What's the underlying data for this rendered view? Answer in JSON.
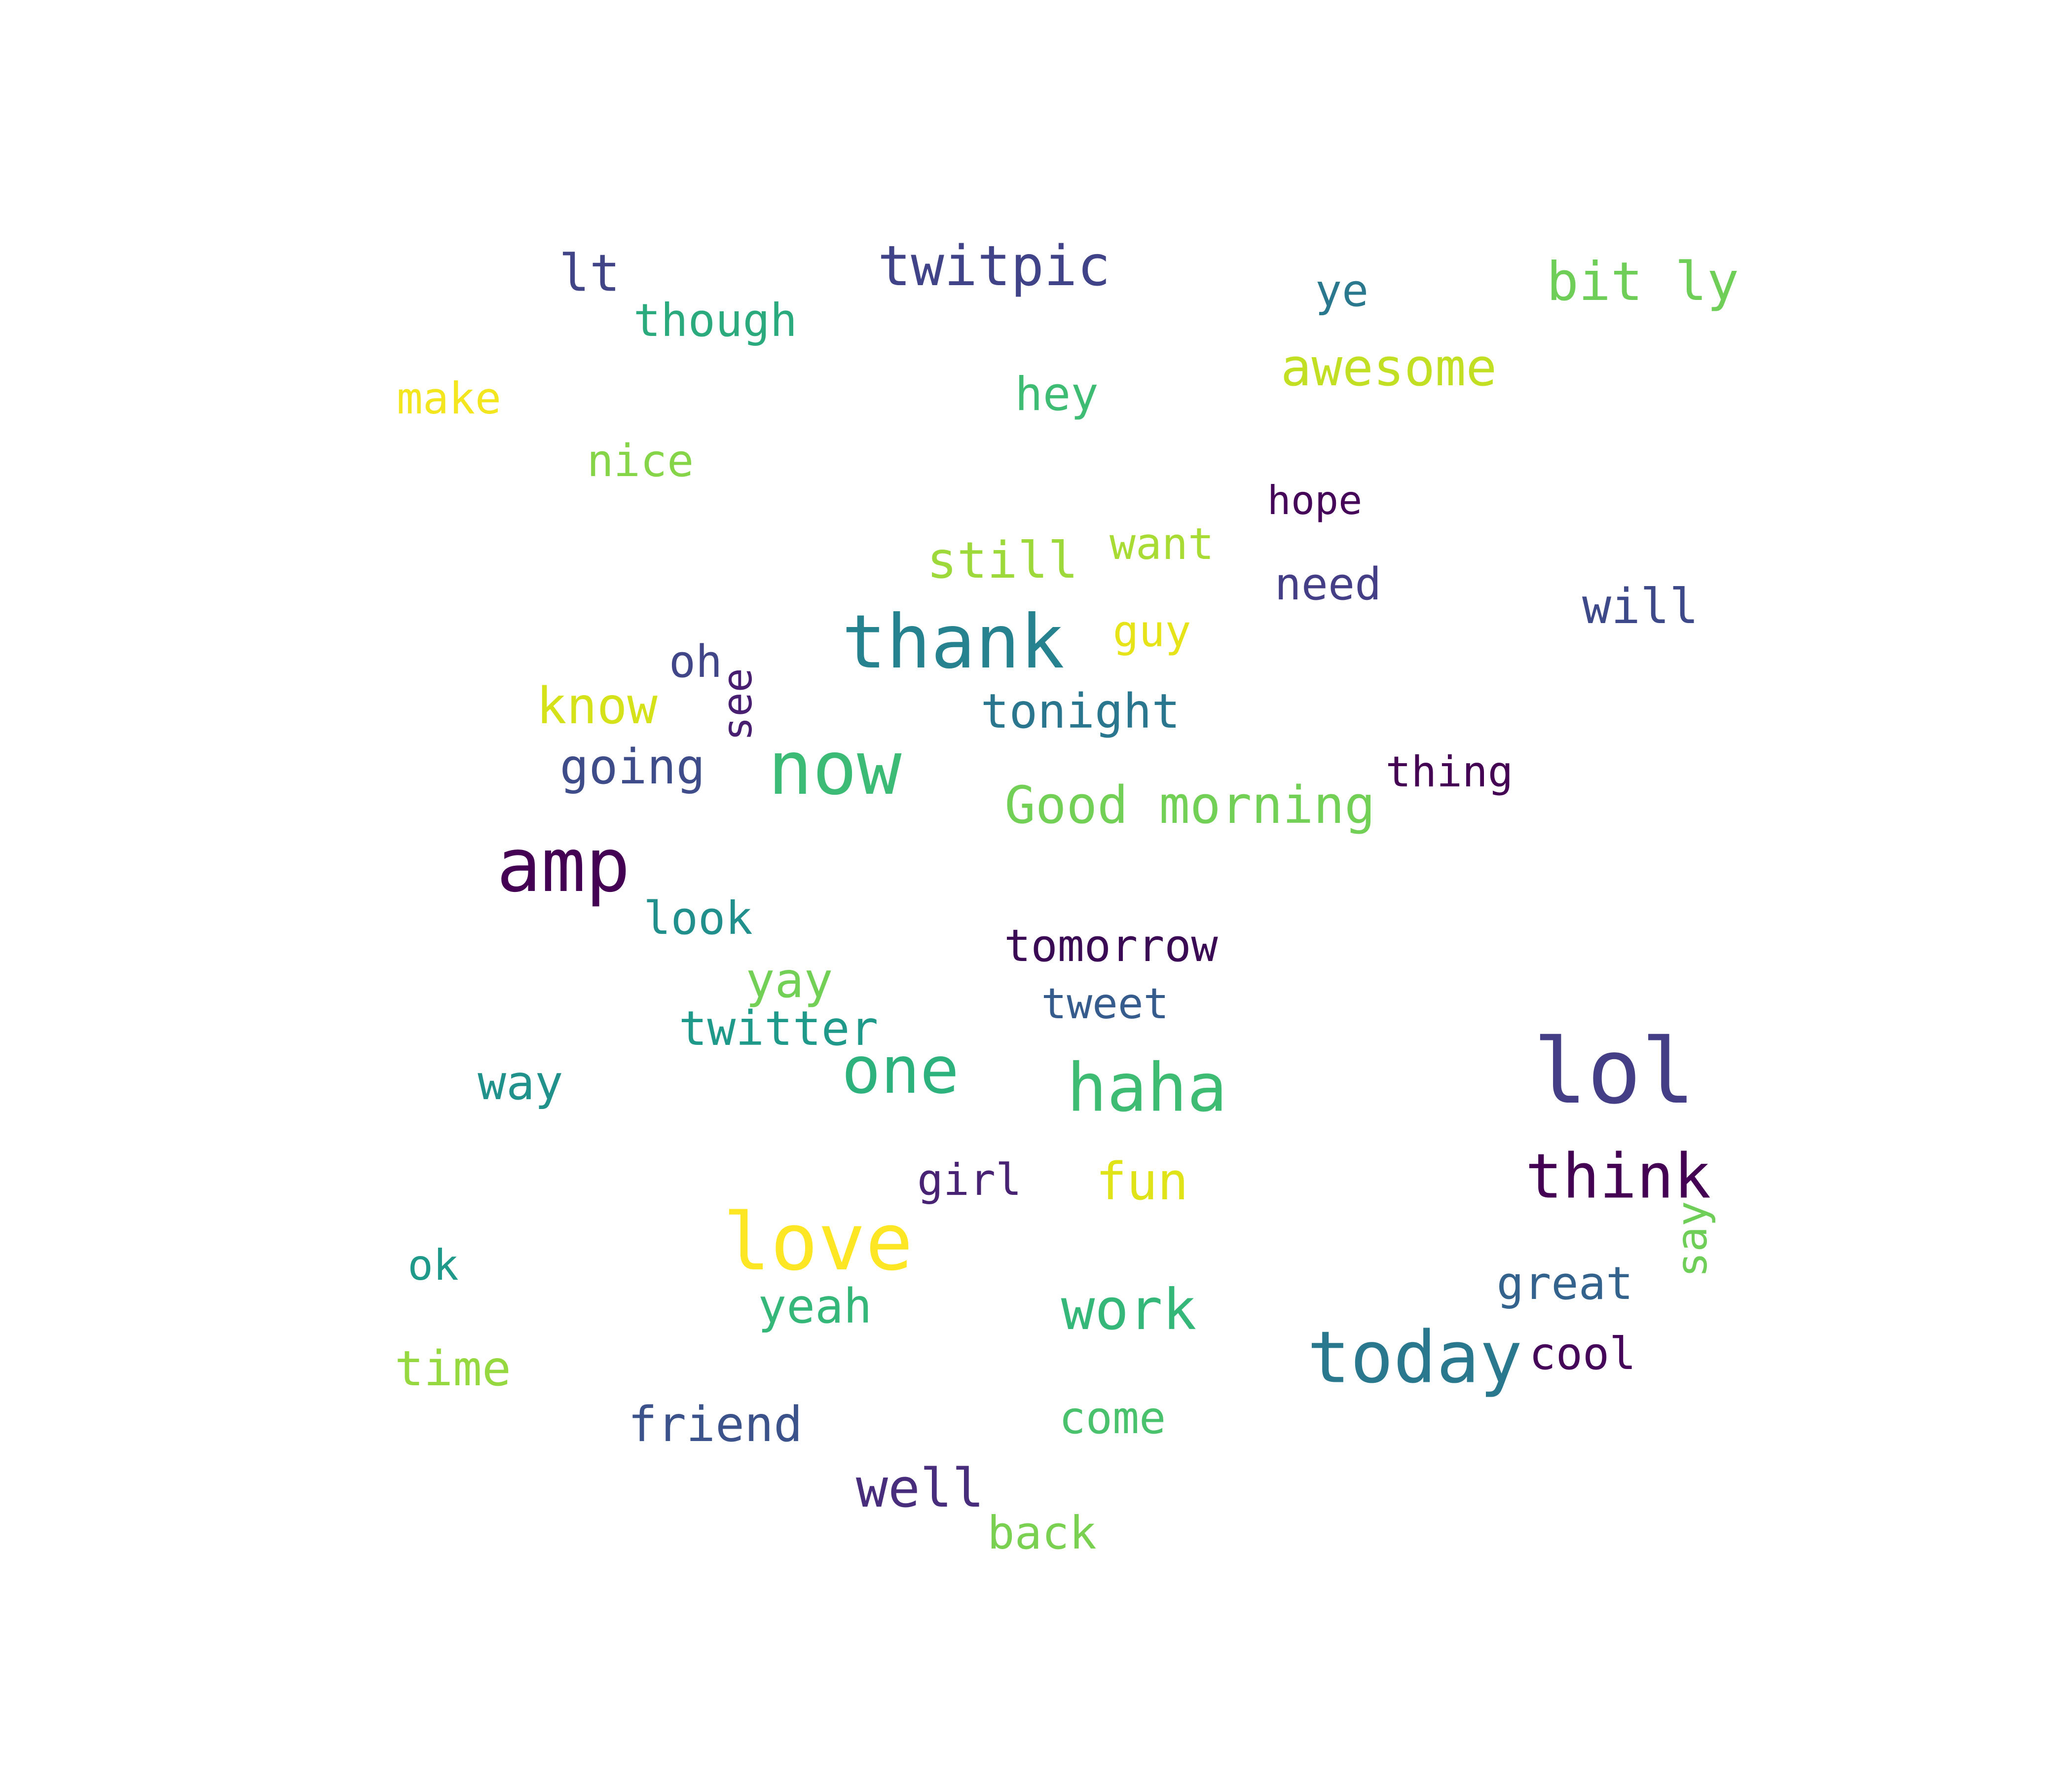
{
  "words": [
    {
      "text": "lt",
      "color": "#414487"
    },
    {
      "text": "though",
      "color": "#2bab7d"
    },
    {
      "text": "twitpic",
      "color": "#404387"
    },
    {
      "text": "ye",
      "color": "#2a788e"
    },
    {
      "text": "bit ly",
      "color": "#6ece58"
    },
    {
      "text": "awesome",
      "color": "#c2df23"
    },
    {
      "text": "make",
      "color": "#f3e51e"
    },
    {
      "text": "hey",
      "color": "#3fbc73"
    },
    {
      "text": "nice",
      "color": "#86d549"
    },
    {
      "text": "hope",
      "color": "#450559"
    },
    {
      "text": "still",
      "color": "#9dd93b"
    },
    {
      "text": "want",
      "color": "#a8db34"
    },
    {
      "text": "need",
      "color": "#433e85"
    },
    {
      "text": "will",
      "color": "#3e4989"
    },
    {
      "text": "thank",
      "color": "#26828e"
    },
    {
      "text": "guy",
      "color": "#e6e419"
    },
    {
      "text": "oh",
      "color": "#404688"
    },
    {
      "text": "see",
      "color": "#481f70"
    },
    {
      "text": "know",
      "color": "#d5e21a"
    },
    {
      "text": "tonight",
      "color": "#2a768e"
    },
    {
      "text": "going",
      "color": "#3e4c8a"
    },
    {
      "text": "now",
      "color": "#3bbb75"
    },
    {
      "text": "Good morning",
      "color": "#73d056"
    },
    {
      "text": "thing",
      "color": "#440154"
    },
    {
      "text": "amp",
      "color": "#440154"
    },
    {
      "text": "look",
      "color": "#21908d"
    },
    {
      "text": "tomorrow",
      "color": "#3a0a55"
    },
    {
      "text": "yay",
      "color": "#73d056"
    },
    {
      "text": "tweet",
      "color": "#365c8d"
    },
    {
      "text": "twitter",
      "color": "#1f9a8a"
    },
    {
      "text": "way",
      "color": "#21918c"
    },
    {
      "text": "one",
      "color": "#2db27d"
    },
    {
      "text": "haha",
      "color": "#3fbc73"
    },
    {
      "text": "lol",
      "color": "#433e85"
    },
    {
      "text": "girl",
      "color": "#482374"
    },
    {
      "text": "fun",
      "color": "#dfe318"
    },
    {
      "text": "think",
      "color": "#440154"
    },
    {
      "text": "love",
      "color": "#fde725"
    },
    {
      "text": "say",
      "color": "#6ece58"
    },
    {
      "text": "ok",
      "color": "#1f9a8a"
    },
    {
      "text": "great",
      "color": "#33638d"
    },
    {
      "text": "yeah",
      "color": "#35b779"
    },
    {
      "text": "work",
      "color": "#35b779"
    },
    {
      "text": "today",
      "color": "#2a788e"
    },
    {
      "text": "cool",
      "color": "#450559"
    },
    {
      "text": "time",
      "color": "#95d840"
    },
    {
      "text": "friend",
      "color": "#3b528b"
    },
    {
      "text": "come",
      "color": "#4ac16d"
    },
    {
      "text": "well",
      "color": "#472d7b"
    },
    {
      "text": "back",
      "color": "#7ad151"
    }
  ]
}
